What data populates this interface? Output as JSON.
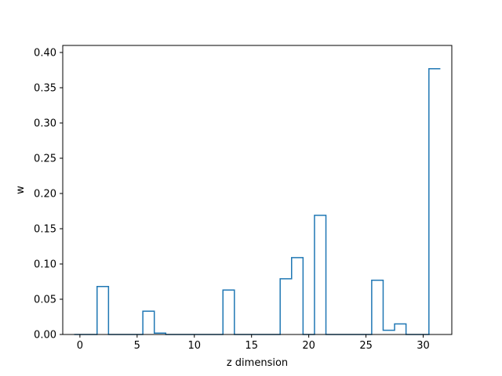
{
  "chart_data": {
    "type": "step",
    "title": "",
    "xlabel": "z dimension",
    "ylabel": "w",
    "xlim": [
      -1.5,
      32.5
    ],
    "ylim": [
      0,
      0.41
    ],
    "xticks": [
      0,
      5,
      10,
      15,
      20,
      25,
      30
    ],
    "xtick_labels": [
      "0",
      "5",
      "10",
      "15",
      "20",
      "25",
      "30"
    ],
    "yticks": [
      0.0,
      0.05,
      0.1,
      0.15,
      0.2,
      0.25,
      0.3,
      0.35,
      0.4
    ],
    "ytick_labels": [
      "0.00",
      "0.05",
      "0.10",
      "0.15",
      "0.20",
      "0.25",
      "0.30",
      "0.35",
      "0.40"
    ],
    "grid": false,
    "series": [
      {
        "color": "#1f77b4",
        "step": "mid",
        "x": [
          0,
          1,
          2,
          3,
          4,
          5,
          6,
          7,
          8,
          9,
          10,
          11,
          12,
          13,
          14,
          15,
          16,
          17,
          18,
          19,
          20,
          21,
          22,
          23,
          24,
          25,
          26,
          27,
          28,
          29,
          30,
          31
        ],
        "values": [
          0,
          0,
          0.068,
          0,
          0,
          0,
          0.033,
          0.002,
          0,
          0,
          0,
          0,
          0,
          0.063,
          0,
          0,
          0,
          0,
          0.079,
          0.109,
          0,
          0.169,
          0,
          0,
          0,
          0,
          0.077,
          0.006,
          0.015,
          0,
          0,
          0.377
        ]
      }
    ]
  }
}
